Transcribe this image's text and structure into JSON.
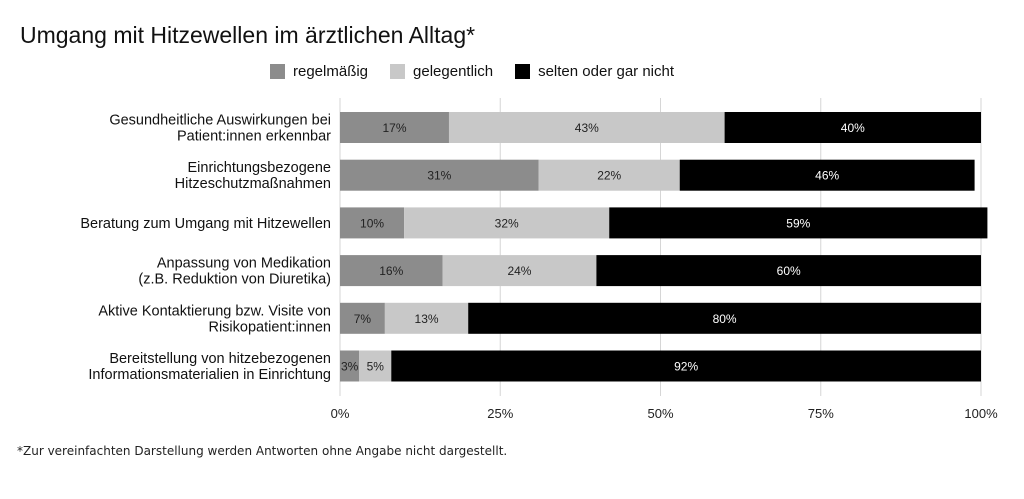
{
  "chart_data": {
    "type": "bar",
    "orientation": "horizontal",
    "stacked": true,
    "title": "Umgang mit Hitzewellen im ärztlichen Alltag*",
    "categories": [
      [
        "Gesundheitliche Auswirkungen bei",
        "Patient:innen erkennbar"
      ],
      [
        "Einrichtungsbezogene",
        "Hitzeschutzmaßnahmen"
      ],
      [
        "Beratung zum Umgang mit Hitzewellen"
      ],
      [
        "Anpassung von Medikation",
        "(z.B. Reduktion von Diuretika)"
      ],
      [
        "Aktive Kontaktierung bzw. Visite von",
        "Risikopatient:innen"
      ],
      [
        "Bereitstellung von hitzebezogenen",
        "Informationsmaterialien in Einrichtung"
      ]
    ],
    "series": [
      {
        "name": "regelmäßig",
        "color": "#8c8c8c",
        "label_color": "#222222",
        "values": [
          17,
          31,
          10,
          16,
          7,
          3
        ]
      },
      {
        "name": "gelegentlich",
        "color": "#c8c8c8",
        "label_color": "#222222",
        "values": [
          43,
          22,
          32,
          24,
          13,
          5
        ]
      },
      {
        "name": "selten oder gar nicht",
        "color": "#000000",
        "label_color": "#ffffff",
        "values": [
          40,
          46,
          59,
          60,
          80,
          92
        ]
      }
    ],
    "xlim": [
      0,
      100
    ],
    "xticks": [
      0,
      25,
      50,
      75,
      100
    ],
    "xtick_labels": [
      "0%",
      "25%",
      "50%",
      "75%",
      "100%"
    ],
    "value_suffix": "%",
    "grid": true,
    "legend": "top"
  },
  "footnote": "*Zur vereinfachten Darstellung werden Antworten ohne Angabe nicht dargestellt."
}
